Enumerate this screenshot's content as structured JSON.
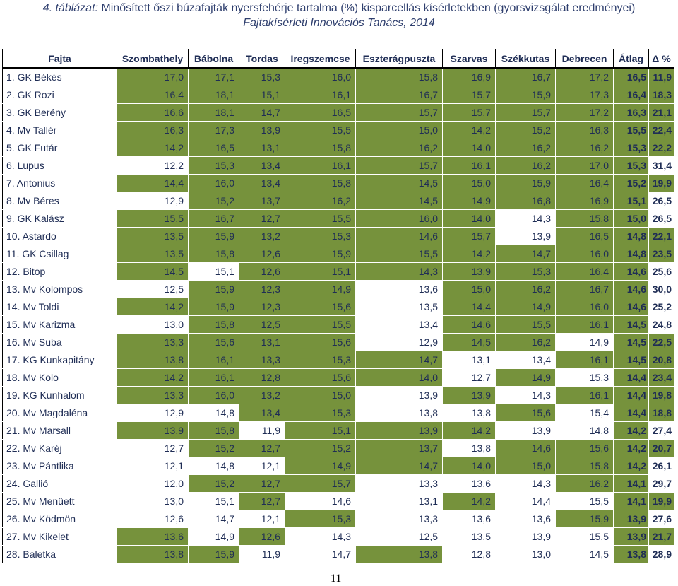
{
  "title": {
    "number": "4. táblázat:",
    "text": "Minősített őszi búzafajták nyersfehérje tartalma (%) kisparcellás kísérletekben (gyorsvizsgálat eredményei)",
    "subtitle": "Fajtakísérleti Innovációs Tanács, 2014"
  },
  "table": {
    "headers": [
      "Fajta",
      "Szombathely",
      "Bábolna",
      "Tordas",
      "Iregszemcse",
      "Eszterágpuszta",
      "Szarvas",
      "Székkutas",
      "Debrecen",
      "Átlag",
      "Δ %"
    ],
    "highlight_color": "#76923c",
    "rows": [
      {
        "name": "1.  GK Békés",
        "vals": [
          "17,0",
          "17,1",
          "15,3",
          "16,0",
          "15,8",
          "16,9",
          "16,7",
          "17,2"
        ],
        "avg": "16,5",
        "pct": "11,9",
        "hl": [
          1,
          1,
          1,
          1,
          1,
          1,
          1,
          1,
          1,
          1
        ]
      },
      {
        "name": "2.  GK Rozi",
        "vals": [
          "16,4",
          "18,1",
          "15,1",
          "16,1",
          "16,7",
          "15,7",
          "15,9",
          "17,3"
        ],
        "avg": "16,4",
        "pct": "18,3",
        "hl": [
          1,
          1,
          1,
          1,
          1,
          1,
          1,
          1,
          1,
          1
        ]
      },
      {
        "name": "3.  GK Berény",
        "vals": [
          "16,6",
          "18,1",
          "14,7",
          "16,5",
          "15,7",
          "15,7",
          "15,7",
          "17,2"
        ],
        "avg": "16,3",
        "pct": "21,1",
        "hl": [
          1,
          1,
          1,
          1,
          1,
          1,
          1,
          1,
          1,
          1
        ]
      },
      {
        "name": "4.  Mv Tallér",
        "vals": [
          "16,3",
          "17,3",
          "13,9",
          "15,5",
          "15,0",
          "14,2",
          "15,2",
          "16,3"
        ],
        "avg": "15,5",
        "pct": "22,4",
        "hl": [
          1,
          1,
          1,
          1,
          1,
          1,
          1,
          1,
          1,
          1
        ]
      },
      {
        "name": "5.  GK Futár",
        "vals": [
          "14,2",
          "16,5",
          "13,1",
          "15,8",
          "16,2",
          "14,0",
          "16,2",
          "16,2"
        ],
        "avg": "15,3",
        "pct": "22,2",
        "hl": [
          1,
          1,
          1,
          1,
          1,
          1,
          1,
          1,
          1,
          1
        ]
      },
      {
        "name": "6.  Lupus",
        "vals": [
          "12,2",
          "15,3",
          "13,4",
          "16,1",
          "15,7",
          "16,1",
          "16,2",
          "17,0"
        ],
        "avg": "15,3",
        "pct": "31,4",
        "hl": [
          0,
          1,
          1,
          1,
          1,
          1,
          1,
          1,
          1,
          0
        ]
      },
      {
        "name": "7.  Antonius",
        "vals": [
          "14,4",
          "16,0",
          "13,4",
          "15,8",
          "14,5",
          "15,0",
          "15,9",
          "16,4"
        ],
        "avg": "15,2",
        "pct": "19,9",
        "hl": [
          1,
          1,
          1,
          1,
          1,
          1,
          1,
          1,
          1,
          1
        ]
      },
      {
        "name": "8.  Mv Béres",
        "vals": [
          "12,9",
          "15,2",
          "13,7",
          "16,2",
          "14,5",
          "14,9",
          "16,8",
          "16,9"
        ],
        "avg": "15,1",
        "pct": "26,5",
        "hl": [
          0,
          1,
          1,
          1,
          1,
          1,
          1,
          1,
          1,
          0
        ]
      },
      {
        "name": "9.  GK Kalász",
        "vals": [
          "15,5",
          "16,7",
          "12,7",
          "15,5",
          "16,0",
          "14,0",
          "14,3",
          "15,8"
        ],
        "avg": "15,0",
        "pct": "26,5",
        "hl": [
          1,
          1,
          1,
          1,
          1,
          1,
          0,
          1,
          1,
          0
        ]
      },
      {
        "name": "10. Astardo",
        "vals": [
          "13,5",
          "15,9",
          "13,2",
          "15,3",
          "14,6",
          "15,7",
          "13,9",
          "16,5"
        ],
        "avg": "14,8",
        "pct": "22,1",
        "hl": [
          1,
          1,
          1,
          1,
          1,
          1,
          0,
          1,
          1,
          1
        ]
      },
      {
        "name": "11. GK Csillag",
        "vals": [
          "13,5",
          "15,8",
          "12,6",
          "15,9",
          "15,5",
          "14,2",
          "14,7",
          "16,0"
        ],
        "avg": "14,8",
        "pct": "23,5",
        "hl": [
          1,
          1,
          1,
          1,
          1,
          1,
          1,
          1,
          1,
          1
        ]
      },
      {
        "name": "12. Bitop",
        "vals": [
          "14,5",
          "15,1",
          "12,6",
          "15,1",
          "14,3",
          "13,9",
          "15,3",
          "16,4"
        ],
        "avg": "14,6",
        "pct": "25,6",
        "hl": [
          1,
          0,
          1,
          1,
          1,
          1,
          1,
          1,
          1,
          0
        ]
      },
      {
        "name": "13. Mv Kolompos",
        "vals": [
          "12,5",
          "15,9",
          "12,3",
          "14,9",
          "13,6",
          "15,0",
          "16,2",
          "16,7"
        ],
        "avg": "14,6",
        "pct": "30,0",
        "hl": [
          0,
          1,
          1,
          1,
          0,
          1,
          1,
          1,
          1,
          0
        ]
      },
      {
        "name": "14. Mv Toldi",
        "vals": [
          "14,2",
          "15,9",
          "12,3",
          "15,6",
          "13,5",
          "14,4",
          "14,9",
          "16,0"
        ],
        "avg": "14,6",
        "pct": "25,2",
        "hl": [
          1,
          1,
          1,
          1,
          0,
          1,
          1,
          1,
          1,
          0
        ]
      },
      {
        "name": "15. Mv Karizma",
        "vals": [
          "13,0",
          "15,8",
          "12,5",
          "15,5",
          "13,4",
          "14,6",
          "15,5",
          "16,1"
        ],
        "avg": "14,5",
        "pct": "24,8",
        "hl": [
          0,
          1,
          1,
          1,
          0,
          1,
          1,
          1,
          1,
          0
        ]
      },
      {
        "name": "16. Mv Suba",
        "vals": [
          "13,3",
          "15,6",
          "13,1",
          "15,6",
          "12,9",
          "14,5",
          "16,2",
          "14,9"
        ],
        "avg": "14,5",
        "pct": "22,5",
        "hl": [
          1,
          1,
          1,
          1,
          0,
          1,
          1,
          0,
          1,
          1
        ]
      },
      {
        "name": "17. KG Kunkapitány",
        "vals": [
          "13,8",
          "16,1",
          "13,3",
          "15,3",
          "14,7",
          "13,1",
          "13,4",
          "16,1"
        ],
        "avg": "14,5",
        "pct": "20,8",
        "hl": [
          1,
          1,
          1,
          1,
          1,
          0,
          0,
          1,
          1,
          1
        ]
      },
      {
        "name": "18. Mv Kolo",
        "vals": [
          "14,2",
          "16,1",
          "12,8",
          "15,6",
          "14,0",
          "12,7",
          "14,9",
          "15,3"
        ],
        "avg": "14,4",
        "pct": "23,4",
        "hl": [
          1,
          1,
          1,
          1,
          1,
          0,
          1,
          0,
          1,
          1
        ]
      },
      {
        "name": "19. KG Kunhalom",
        "vals": [
          "13,3",
          "16,0",
          "13,2",
          "15,0",
          "13,9",
          "13,9",
          "14,3",
          "16,1"
        ],
        "avg": "14,4",
        "pct": "19,8",
        "hl": [
          1,
          1,
          1,
          1,
          0,
          1,
          0,
          1,
          1,
          1
        ]
      },
      {
        "name": "20. Mv Magdaléna",
        "vals": [
          "12,9",
          "14,8",
          "13,4",
          "15,3",
          "13,8",
          "13,8",
          "15,6",
          "15,4"
        ],
        "avg": "14,4",
        "pct": "18,8",
        "hl": [
          0,
          0,
          1,
          1,
          0,
          0,
          1,
          0,
          1,
          1
        ]
      },
      {
        "name": "21. Mv Marsall",
        "vals": [
          "13,9",
          "15,8",
          "11,9",
          "15,1",
          "13,9",
          "14,2",
          "13,9",
          "14,8"
        ],
        "avg": "14,2",
        "pct": "27,4",
        "hl": [
          1,
          1,
          0,
          1,
          1,
          1,
          0,
          0,
          1,
          0
        ]
      },
      {
        "name": "22. Mv Karéj",
        "vals": [
          "12,7",
          "15,2",
          "12,7",
          "15,2",
          "13,7",
          "13,8",
          "14,6",
          "15,6"
        ],
        "avg": "14,2",
        "pct": "20,7",
        "hl": [
          0,
          1,
          1,
          1,
          1,
          0,
          1,
          1,
          1,
          1
        ]
      },
      {
        "name": "23. Mv Pántlika",
        "vals": [
          "12,1",
          "14,8",
          "12,1",
          "14,9",
          "14,7",
          "14,0",
          "15,0",
          "15,8"
        ],
        "avg": "14,2",
        "pct": "26,1",
        "hl": [
          0,
          0,
          0,
          1,
          1,
          1,
          1,
          1,
          1,
          0
        ]
      },
      {
        "name": "24. Gallió",
        "vals": [
          "12,0",
          "15,2",
          "12,7",
          "15,7",
          "13,3",
          "13,6",
          "14,3",
          "16,2"
        ],
        "avg": "14,1",
        "pct": "29,7",
        "hl": [
          0,
          1,
          1,
          1,
          0,
          0,
          0,
          1,
          1,
          0
        ]
      },
      {
        "name": "25. Mv Menüett",
        "vals": [
          "13,0",
          "15,1",
          "12,7",
          "14,6",
          "13,1",
          "14,2",
          "14,4",
          "15,5"
        ],
        "avg": "14,1",
        "pct": "19,9",
        "hl": [
          0,
          0,
          1,
          0,
          0,
          1,
          0,
          0,
          1,
          1
        ]
      },
      {
        "name": "26. Mv Ködmön",
        "vals": [
          "12,6",
          "14,7",
          "12,1",
          "15,3",
          "13,3",
          "13,6",
          "13,6",
          "15,9"
        ],
        "avg": "13,9",
        "pct": "27,6",
        "hl": [
          0,
          0,
          0,
          1,
          0,
          0,
          0,
          1,
          1,
          0
        ]
      },
      {
        "name": "27. Mv Kikelet",
        "vals": [
          "13,6",
          "14,9",
          "12,6",
          "14,3",
          "12,5",
          "13,5",
          "13,9",
          "15,5"
        ],
        "avg": "13,9",
        "pct": "21,7",
        "hl": [
          1,
          0,
          1,
          0,
          0,
          0,
          0,
          0,
          1,
          1
        ]
      },
      {
        "name": "28. Baletka",
        "vals": [
          "13,8",
          "15,9",
          "11,9",
          "14,7",
          "13,8",
          "12,8",
          "13,0",
          "14,5"
        ],
        "avg": "13,8",
        "pct": "28,9",
        "hl": [
          1,
          1,
          0,
          0,
          1,
          0,
          0,
          0,
          1,
          0
        ]
      }
    ]
  },
  "page_number": "11"
}
